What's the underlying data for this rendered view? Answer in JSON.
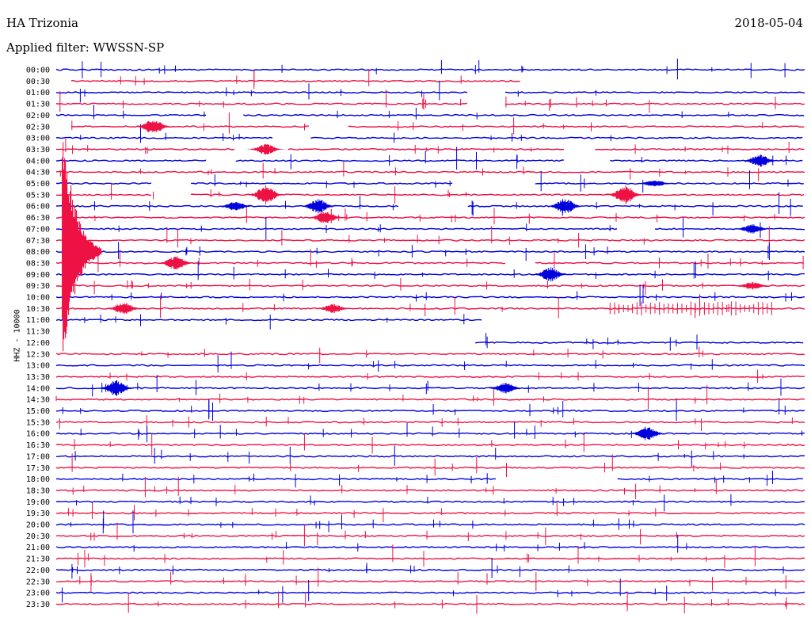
{
  "header": {
    "station": "HA Trizonia",
    "date": "2018-05-04",
    "filter_label": "Applied filter: WWSSN-SP"
  },
  "chart_data": {
    "type": "line",
    "title": "HA Trizonia",
    "ylabel": "HHZ - 10000",
    "colors": [
      "#0000dd",
      "#ee1144"
    ],
    "time_labels": [
      "00:00",
      "00:30",
      "01:00",
      "01:30",
      "02:00",
      "02:30",
      "03:00",
      "03:30",
      "04:00",
      "04:30",
      "05:00",
      "05:30",
      "06:00",
      "06:30",
      "07:00",
      "07:30",
      "08:00",
      "08:30",
      "09:00",
      "09:30",
      "10:00",
      "10:30",
      "11:00",
      "11:30",
      "12:00",
      "12:30",
      "13:00",
      "13:30",
      "14:00",
      "14:30",
      "15:00",
      "15:30",
      "16:00",
      "16:30",
      "17:00",
      "17:30",
      "18:00",
      "18:30",
      "19:00",
      "19:30",
      "20:00",
      "20:30",
      "21:00",
      "21:30",
      "22:00",
      "22:30",
      "23:00",
      "23:30"
    ],
    "gaps": [
      {
        "row": 1,
        "start": 0.0,
        "end": 0.02
      },
      {
        "row": 1,
        "start": 0.62,
        "end": 1.0
      },
      {
        "row": 2,
        "start": 0.55,
        "end": 0.6
      },
      {
        "row": 3,
        "start": 0.55,
        "end": 0.6
      },
      {
        "row": 4,
        "start": 0.2,
        "end": 0.25
      },
      {
        "row": 5,
        "start": 0.0,
        "end": 0.02
      },
      {
        "row": 5,
        "start": 0.34,
        "end": 0.39
      },
      {
        "row": 6,
        "start": 0.29,
        "end": 0.34
      },
      {
        "row": 7,
        "start": 0.24,
        "end": 0.31
      },
      {
        "row": 7,
        "start": 0.68,
        "end": 0.72
      },
      {
        "row": 8,
        "start": 0.2,
        "end": 0.24
      },
      {
        "row": 8,
        "start": 0.68,
        "end": 0.74
      },
      {
        "row": 10,
        "start": 0.13,
        "end": 0.18
      },
      {
        "row": 10,
        "start": 0.53,
        "end": 0.64
      },
      {
        "row": 11,
        "start": 0.13,
        "end": 0.18
      },
      {
        "row": 12,
        "start": 0.46,
        "end": 0.55
      },
      {
        "row": 14,
        "start": 0.75,
        "end": 0.8
      },
      {
        "row": 17,
        "start": 0.6,
        "end": 0.64
      },
      {
        "row": 22,
        "start": 0.57,
        "end": 1.0
      },
      {
        "row": 23,
        "start": 0.0,
        "end": 1.0
      },
      {
        "row": 24,
        "start": 0.0,
        "end": 0.56
      },
      {
        "row": 36,
        "start": 0.59,
        "end": 0.75
      }
    ],
    "events": [
      {
        "row": 5,
        "pos": 0.13,
        "amp": 10
      },
      {
        "row": 7,
        "pos": 0.28,
        "amp": 7
      },
      {
        "row": 8,
        "pos": 0.94,
        "amp": 8
      },
      {
        "row": 10,
        "pos": 0.8,
        "amp": 5
      },
      {
        "row": 11,
        "pos": 0.28,
        "amp": 12
      },
      {
        "row": 11,
        "pos": 0.76,
        "amp": 12
      },
      {
        "row": 12,
        "pos": 0.24,
        "amp": 6
      },
      {
        "row": 12,
        "pos": 0.35,
        "amp": 9
      },
      {
        "row": 12,
        "pos": 0.68,
        "amp": 10
      },
      {
        "row": 13,
        "pos": 0.36,
        "amp": 8
      },
      {
        "row": 14,
        "pos": 0.93,
        "amp": 6
      },
      {
        "row": 17,
        "pos": 0.16,
        "amp": 9
      },
      {
        "row": 18,
        "pos": 0.66,
        "amp": 9
      },
      {
        "row": 19,
        "pos": 0.93,
        "amp": 5
      },
      {
        "row": 21,
        "pos": 0.09,
        "amp": 8
      },
      {
        "row": 21,
        "pos": 0.37,
        "amp": 6
      },
      {
        "row": 28,
        "pos": 0.08,
        "amp": 10
      },
      {
        "row": 28,
        "pos": 0.6,
        "amp": 7
      },
      {
        "row": 32,
        "pos": 0.79,
        "amp": 9
      }
    ],
    "big_event": {
      "row": 16,
      "pos": 0.008,
      "top_row": 6,
      "bottom_row": 25
    },
    "tremor": {
      "row": 21,
      "start": 0.74,
      "end": 0.96
    }
  }
}
